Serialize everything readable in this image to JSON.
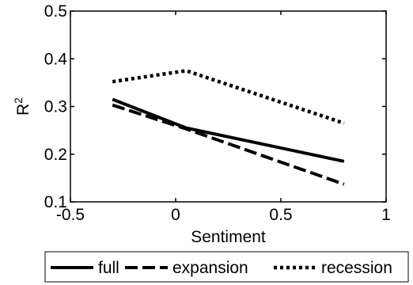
{
  "chart_data": {
    "type": "line",
    "title": "",
    "xlabel": "Sentiment",
    "ylabel": "R",
    "ylabel_superscript": "2",
    "xlim": [
      -0.5,
      1
    ],
    "ylim": [
      0.1,
      0.5
    ],
    "xticks": [
      -0.5,
      0,
      0.5,
      1
    ],
    "xtick_labels": [
      "-0.5",
      "0",
      "0.5",
      "1"
    ],
    "yticks": [
      0.1,
      0.2,
      0.3,
      0.4,
      0.5
    ],
    "ytick_labels": [
      "0.1",
      "0.2",
      "0.3",
      "0.4",
      "0.5"
    ],
    "grid": false,
    "legend_position": "bottom",
    "series": [
      {
        "name": "full",
        "style": "solid",
        "color": "#000000",
        "x": [
          -0.3,
          0.05,
          0.8
        ],
        "y": [
          0.315,
          0.255,
          0.185
        ]
      },
      {
        "name": "expansion",
        "style": "dashed",
        "color": "#000000",
        "x": [
          -0.3,
          0.05,
          0.8
        ],
        "y": [
          0.303,
          0.253,
          0.137
        ]
      },
      {
        "name": "recession",
        "style": "dotted",
        "color": "#000000",
        "x": [
          -0.3,
          0.05,
          0.8
        ],
        "y": [
          0.352,
          0.375,
          0.265
        ]
      }
    ]
  }
}
